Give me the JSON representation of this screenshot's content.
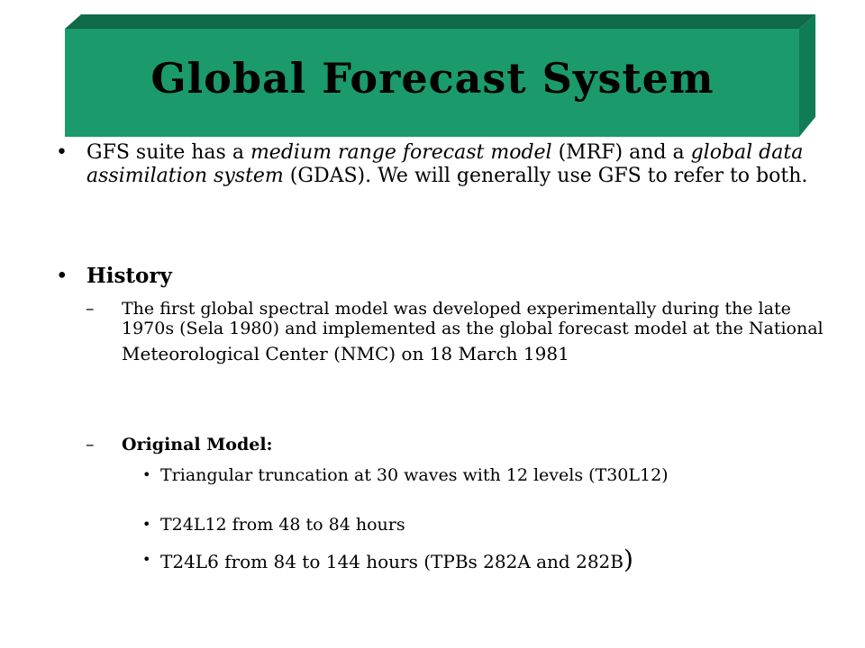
{
  "colors": {
    "title_front": "#1b9a6b",
    "title_top": "#0f6a47",
    "title_side": "#0f7c55"
  },
  "title": "Global Forecast System",
  "bullets": {
    "gfs": {
      "part1": "GFS suite has a ",
      "italic1": "medium range forecast model",
      "part2": " (MRF) and a ",
      "italic2": "global data assimilation system",
      "part3": " (GDAS). We will generally use GFS to refer to both."
    },
    "history": {
      "label": "History",
      "first": {
        "line1": "The first global spectral model was developed experimentally during the late 1970s (Sela 1980) and implemented as the global forecast model at the National",
        "line4": "Meteorological Center (NMC) on 18 March 1981"
      },
      "original": {
        "label": "Original Model:",
        "items": [
          "Triangular truncation at 30 waves with 12 levels (T30L12)",
          "T24L12 from 48 to 84 hours",
          "T24L6 from 84 to 144 hours (TPBs 282A and 282B"
        ],
        "last_paren": ")"
      }
    }
  }
}
